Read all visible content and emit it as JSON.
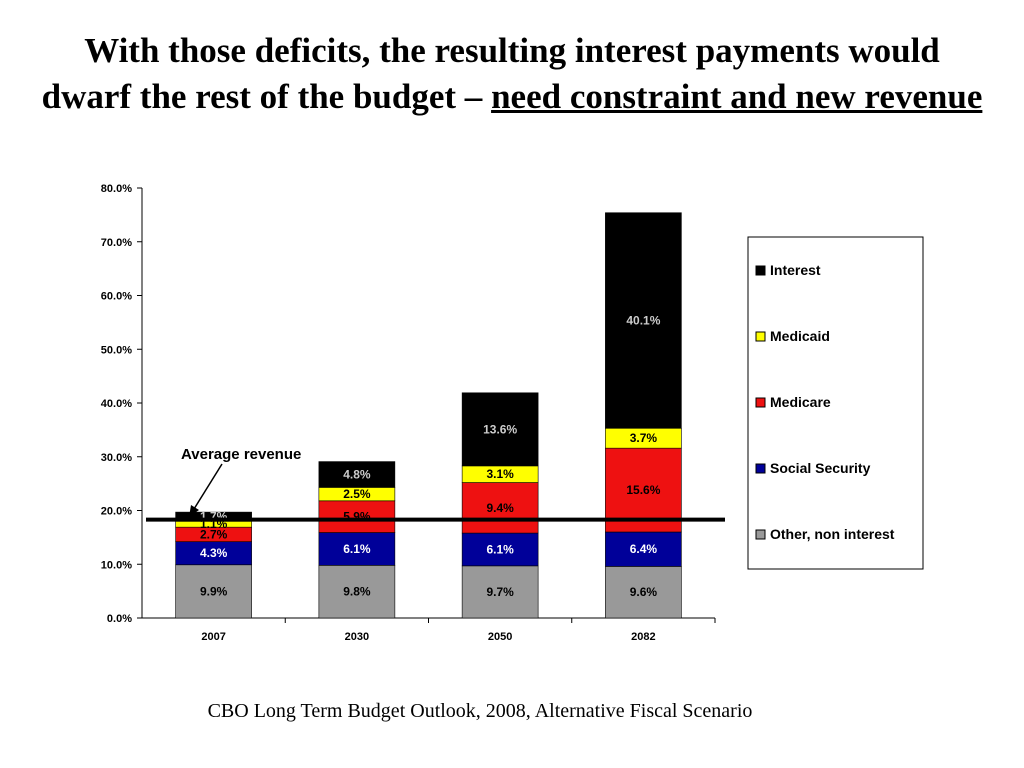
{
  "slide": {
    "title_part1": "With those deficits, the resulting interest payments would dwarf the rest of the budget – ",
    "title_underlined": "need constraint and new revenue",
    "source": "CBO Long Term Budget Outlook, 2008, Alternative Fiscal Scenario"
  },
  "chart_data": {
    "type": "bar",
    "stacked": true,
    "categories": [
      "2007",
      "2030",
      "2050",
      "2082"
    ],
    "ylim": [
      0,
      80
    ],
    "yticks": [
      "0.0%",
      "10.0%",
      "20.0%",
      "30.0%",
      "40.0%",
      "50.0%",
      "60.0%",
      "70.0%",
      "80.0%"
    ],
    "series": [
      {
        "name": "Other, non interest",
        "color": "#999999",
        "label_color": "#000000",
        "values": [
          9.9,
          9.8,
          9.7,
          9.6
        ],
        "labels": [
          "9.9%",
          "9.8%",
          "9.7%",
          "9.6%"
        ]
      },
      {
        "name": "Social Security",
        "color": "#000099",
        "label_color": "#ffffff",
        "values": [
          4.3,
          6.1,
          6.1,
          6.4
        ],
        "labels": [
          "4.3%",
          "6.1%",
          "6.1%",
          "6.4%"
        ]
      },
      {
        "name": "Medicare",
        "color": "#ee1111",
        "label_color": "#000000",
        "values": [
          2.7,
          5.9,
          9.4,
          15.6
        ],
        "labels": [
          "2.7%",
          "5.9%",
          "9.4%",
          "15.6%"
        ]
      },
      {
        "name": "Medicaid",
        "color": "#ffff00",
        "label_color": "#000000",
        "values": [
          1.1,
          2.5,
          3.1,
          3.7
        ],
        "labels": [
          "1.1%",
          "2.5%",
          "3.1%",
          "3.7%"
        ]
      },
      {
        "name": "Interest",
        "color": "#000000",
        "label_color": "#cccccc",
        "values": [
          1.7,
          4.8,
          13.6,
          40.1
        ],
        "labels": [
          "1.7%",
          "4.8%",
          "13.6%",
          "40.1%"
        ]
      }
    ],
    "legend_order": [
      "Interest",
      "Medicaid",
      "Medicare",
      "Social Security",
      "Other, non interest"
    ],
    "legend_placement": "right",
    "reference_line": {
      "value": 18.3,
      "label": "Average revenue"
    },
    "grid": false
  }
}
